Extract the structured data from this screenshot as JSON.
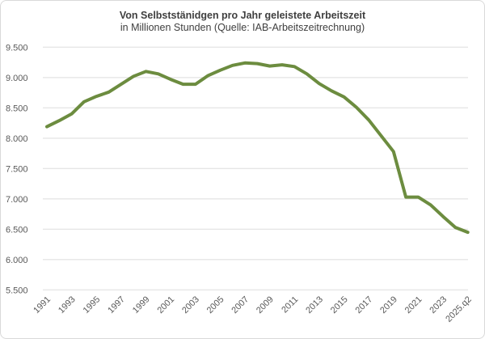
{
  "chart_data": {
    "type": "line",
    "title": "Von Selbststänidgen pro Jahr geleistete Arbeitszeit",
    "subtitle": "in Millionen Stunden (Quelle: IAB-Arbeitszeitrechnung)",
    "x": [
      "1991",
      "1992",
      "1993",
      "1994",
      "1995",
      "1996",
      "1997",
      "1998",
      "1999",
      "2000",
      "2001",
      "2002",
      "2003",
      "2004",
      "2005",
      "2006",
      "2007",
      "2008",
      "2009",
      "2010",
      "2011",
      "2012",
      "2013",
      "2014",
      "2015",
      "2016",
      "2017",
      "2018",
      "2019",
      "2020",
      "2021",
      "2022",
      "2023",
      "2024",
      "2025.q2"
    ],
    "values": [
      8190,
      8290,
      8400,
      8600,
      8690,
      8760,
      8890,
      9020,
      9100,
      9060,
      8970,
      8890,
      8890,
      9030,
      9120,
      9200,
      9240,
      9230,
      9190,
      9210,
      9180,
      9060,
      8900,
      8780,
      8680,
      8510,
      8300,
      8040,
      7780,
      7030,
      7030,
      6900,
      6710,
      6530,
      6450
    ],
    "x_tick_labels": [
      "1991",
      "1993",
      "1995",
      "1997",
      "1999",
      "2001",
      "2003",
      "2005",
      "2007",
      "2009",
      "2011",
      "2013",
      "2015",
      "2017",
      "2019",
      "2021",
      "2023",
      "2025.q2"
    ],
    "y_ticks": [
      9500,
      9000,
      8500,
      8000,
      7500,
      7000,
      6500,
      6000,
      5500
    ],
    "y_tick_labels": [
      "9.500",
      "9.000",
      "8.500",
      "8.000",
      "7.500",
      "7.000",
      "6.500",
      "6.000",
      "5.500"
    ],
    "ylim": [
      5500,
      9500
    ],
    "grid": "horizontal",
    "legend": "none",
    "line_color": "#6c8c3f",
    "colors": {
      "title_text": "#3f3f3f",
      "axis_text": "#595959",
      "gridline": "#e6e6e6",
      "frame_border": "#d9d9d9",
      "background": "#ffffff"
    }
  }
}
